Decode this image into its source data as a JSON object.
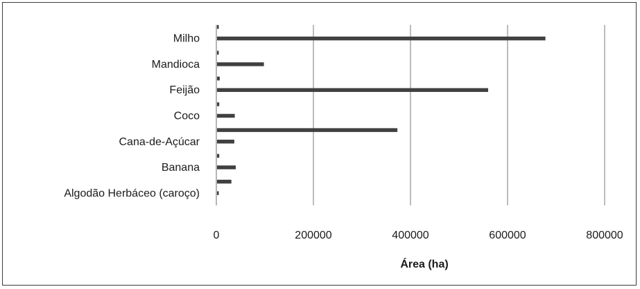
{
  "chart_data": {
    "type": "bar",
    "orientation": "horizontal",
    "categories": [
      "Algodão Herbáceo (caroço)",
      "Banana",
      "Cana-de-Açúcar",
      "Coco",
      "Feijão",
      "Mandioca",
      "Milho"
    ],
    "series": [
      {
        "values": [
          5000,
          40000,
          37000,
          38000,
          560000,
          98000,
          678000
        ]
      },
      {
        "values": [
          31000,
          6000,
          373000,
          6000,
          7000,
          5000,
          5000
        ]
      }
    ],
    "colors": [
      "#404040",
      "#404040"
    ],
    "xlabel": "Área (ha)",
    "ylabel": "",
    "title": "",
    "xlim": [
      0,
      800000
    ],
    "xticks": [
      "0",
      "200000",
      "400000",
      "600000",
      "800000"
    ],
    "grid": "vertical",
    "legend": "none"
  }
}
